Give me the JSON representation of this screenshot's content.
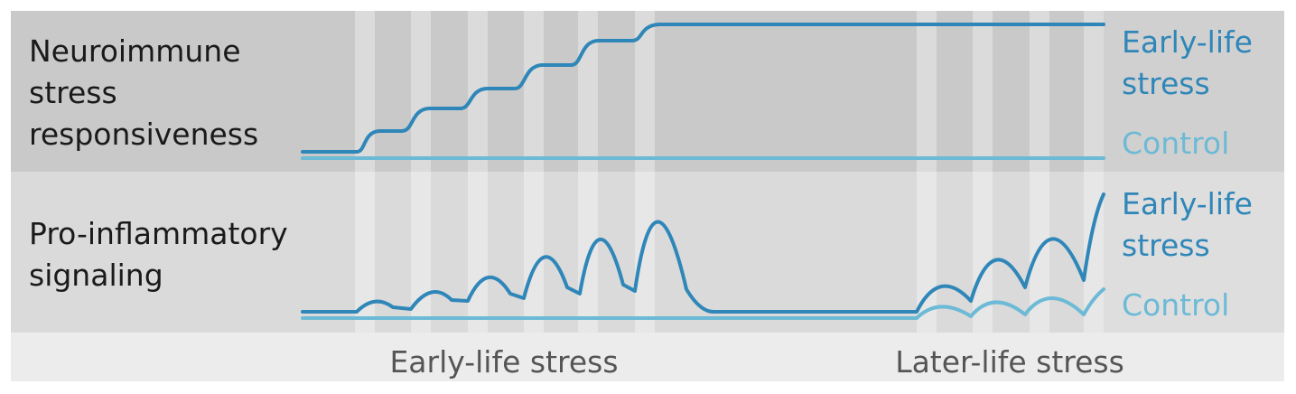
{
  "rows": [
    {
      "label": [
        "Neuroimmune",
        "stress",
        "responsiveness"
      ],
      "series": [
        {
          "label": [
            "Early-life",
            "stress"
          ]
        },
        {
          "label": [
            "Control"
          ]
        }
      ]
    },
    {
      "label": [
        "Pro-inflammatory",
        "signaling"
      ],
      "series": [
        {
          "label": [
            "Early-life",
            "stress"
          ]
        },
        {
          "label": [
            "Control"
          ]
        }
      ]
    }
  ],
  "periods": [
    "Early-life stress",
    "Later-life stress"
  ]
}
